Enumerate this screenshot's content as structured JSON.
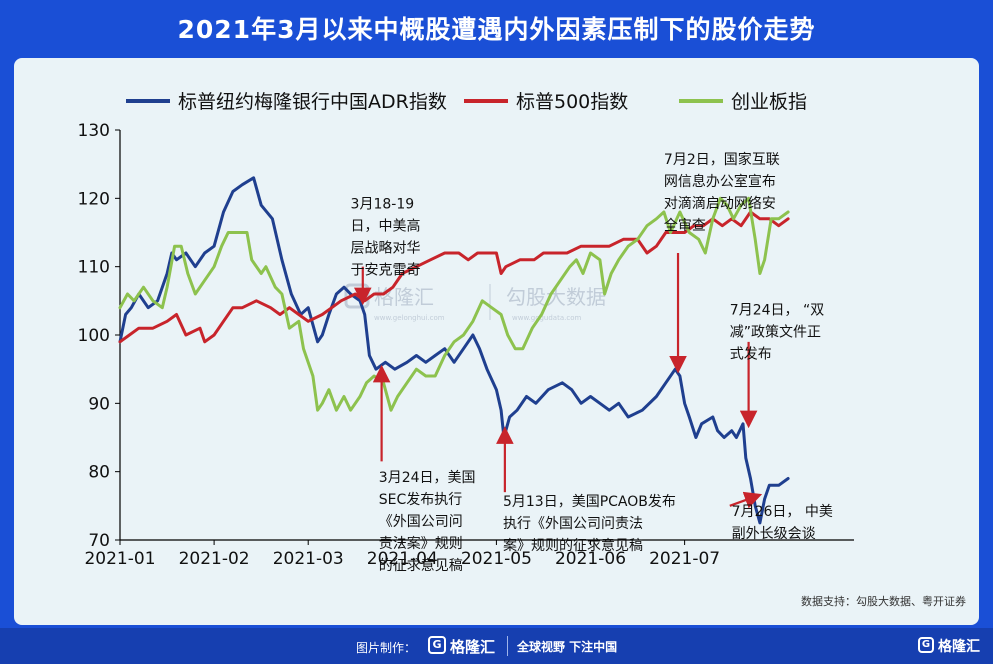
{
  "page_title": "2021年3月以来中概股遭遇内外因素压制下的股价走势",
  "source_note": "数据支持：勾股大数据、粤开证券",
  "watermarks": {
    "left": "格隆汇",
    "left_url": "www.gelonghui.com",
    "right": "勾股大数据",
    "right_url": "www.gogudata.com"
  },
  "footer": {
    "made_by": "图片制作：",
    "brand_icon": "G",
    "brand": "格隆汇",
    "slogan": "全球视野 下注中国",
    "corner_icon": "G",
    "corner_brand": "格隆汇"
  },
  "colors": {
    "adr": "#1f3f8f",
    "sp500": "#c8242b",
    "chinext": "#8dc24e",
    "arrow": "#c8242b",
    "header": "#1a4fd6"
  },
  "chart_data": {
    "type": "line",
    "title": "",
    "xlabel": "",
    "ylabel": "",
    "ylim": [
      70,
      130
    ],
    "yticks": [
      "70",
      "80",
      "90",
      "100",
      "110",
      "120",
      "130"
    ],
    "xlim": [
      0,
      7.8
    ],
    "xticks": [
      {
        "label": "2021-01",
        "x": 0
      },
      {
        "label": "2021-02",
        "x": 1
      },
      {
        "label": "2021-03",
        "x": 2
      },
      {
        "label": "2021-04",
        "x": 3
      },
      {
        "label": "2021-05",
        "x": 4
      },
      {
        "label": "2021-06",
        "x": 5
      },
      {
        "label": "2021-07",
        "x": 6
      }
    ],
    "grid": false,
    "legend_position": "top",
    "series": [
      {
        "name": "标普纽约梅隆银行中国ADR指数",
        "color": "#1f3f8f",
        "points": [
          [
            0,
            99
          ],
          [
            0.06,
            103
          ],
          [
            0.12,
            104
          ],
          [
            0.2,
            106
          ],
          [
            0.3,
            104
          ],
          [
            0.4,
            105
          ],
          [
            0.5,
            109
          ],
          [
            0.55,
            112
          ],
          [
            0.6,
            111
          ],
          [
            0.7,
            112
          ],
          [
            0.8,
            110
          ],
          [
            0.9,
            112
          ],
          [
            1.0,
            113
          ],
          [
            1.1,
            118
          ],
          [
            1.2,
            121
          ],
          [
            1.3,
            122
          ],
          [
            1.42,
            123
          ],
          [
            1.5,
            119
          ],
          [
            1.62,
            117
          ],
          [
            1.72,
            111
          ],
          [
            1.82,
            106
          ],
          [
            1.92,
            103
          ],
          [
            2.0,
            104
          ],
          [
            2.1,
            99
          ],
          [
            2.15,
            100
          ],
          [
            2.22,
            103
          ],
          [
            2.3,
            106
          ],
          [
            2.38,
            107
          ],
          [
            2.45,
            106
          ],
          [
            2.55,
            105
          ],
          [
            2.6,
            103
          ],
          [
            2.65,
            97
          ],
          [
            2.72,
            95
          ],
          [
            2.82,
            96
          ],
          [
            2.92,
            95
          ],
          [
            3.05,
            96
          ],
          [
            3.15,
            97
          ],
          [
            3.25,
            96
          ],
          [
            3.35,
            97
          ],
          [
            3.45,
            98
          ],
          [
            3.55,
            96
          ],
          [
            3.65,
            98
          ],
          [
            3.75,
            100
          ],
          [
            3.82,
            98
          ],
          [
            3.9,
            95
          ],
          [
            4.0,
            92
          ],
          [
            4.05,
            89
          ],
          [
            4.08,
            85
          ],
          [
            4.14,
            88
          ],
          [
            4.22,
            89
          ],
          [
            4.32,
            91
          ],
          [
            4.42,
            90
          ],
          [
            4.55,
            92
          ],
          [
            4.7,
            93
          ],
          [
            4.8,
            92
          ],
          [
            4.9,
            90
          ],
          [
            5.0,
            91
          ],
          [
            5.1,
            90
          ],
          [
            5.2,
            89
          ],
          [
            5.3,
            90
          ],
          [
            5.4,
            88
          ],
          [
            5.55,
            89
          ],
          [
            5.7,
            91
          ],
          [
            5.8,
            93
          ],
          [
            5.9,
            95
          ],
          [
            5.95,
            94
          ],
          [
            6.0,
            90
          ],
          [
            6.05,
            88
          ],
          [
            6.12,
            85
          ],
          [
            6.18,
            87
          ],
          [
            6.3,
            88
          ],
          [
            6.35,
            86
          ],
          [
            6.42,
            85
          ],
          [
            6.5,
            86
          ],
          [
            6.55,
            85
          ],
          [
            6.62,
            87
          ],
          [
            6.65,
            82
          ],
          [
            6.7,
            79
          ],
          [
            6.75,
            75
          ],
          [
            6.8,
            72.5
          ],
          [
            6.85,
            76
          ],
          [
            6.9,
            78
          ],
          [
            7.0,
            78
          ],
          [
            7.1,
            79
          ]
        ]
      },
      {
        "name": "标普500指数",
        "color": "#c8242b",
        "points": [
          [
            0,
            99
          ],
          [
            0.1,
            100
          ],
          [
            0.2,
            101
          ],
          [
            0.35,
            101
          ],
          [
            0.5,
            102
          ],
          [
            0.6,
            103
          ],
          [
            0.7,
            100
          ],
          [
            0.85,
            101
          ],
          [
            0.9,
            99
          ],
          [
            1.0,
            100
          ],
          [
            1.1,
            102
          ],
          [
            1.2,
            104
          ],
          [
            1.3,
            104
          ],
          [
            1.45,
            105
          ],
          [
            1.6,
            104
          ],
          [
            1.7,
            103
          ],
          [
            1.8,
            104
          ],
          [
            1.9,
            103
          ],
          [
            2.0,
            102
          ],
          [
            2.15,
            103
          ],
          [
            2.25,
            104
          ],
          [
            2.35,
            105
          ],
          [
            2.5,
            106
          ],
          [
            2.6,
            105
          ],
          [
            2.7,
            106
          ],
          [
            2.8,
            106
          ],
          [
            2.9,
            107
          ],
          [
            3.0,
            109
          ],
          [
            3.15,
            110
          ],
          [
            3.3,
            111
          ],
          [
            3.45,
            112
          ],
          [
            3.6,
            112
          ],
          [
            3.7,
            111
          ],
          [
            3.8,
            112
          ],
          [
            3.9,
            112
          ],
          [
            4.0,
            112
          ],
          [
            4.05,
            109
          ],
          [
            4.1,
            110
          ],
          [
            4.25,
            111
          ],
          [
            4.4,
            111
          ],
          [
            4.5,
            112
          ],
          [
            4.6,
            112
          ],
          [
            4.75,
            112
          ],
          [
            4.9,
            113
          ],
          [
            5.05,
            113
          ],
          [
            5.2,
            113
          ],
          [
            5.35,
            114
          ],
          [
            5.5,
            114
          ],
          [
            5.6,
            112
          ],
          [
            5.7,
            113
          ],
          [
            5.8,
            115
          ],
          [
            6.0,
            115
          ],
          [
            6.1,
            116
          ],
          [
            6.2,
            116
          ],
          [
            6.3,
            117
          ],
          [
            6.4,
            116
          ],
          [
            6.5,
            117
          ],
          [
            6.6,
            116
          ],
          [
            6.7,
            118
          ],
          [
            6.8,
            117
          ],
          [
            6.9,
            117
          ],
          [
            7.0,
            116
          ],
          [
            7.1,
            117
          ]
        ]
      },
      {
        "name": "创业板指",
        "color": "#8dc24e",
        "points": [
          [
            0,
            104
          ],
          [
            0.08,
            106
          ],
          [
            0.15,
            105
          ],
          [
            0.25,
            107
          ],
          [
            0.35,
            105
          ],
          [
            0.45,
            104
          ],
          [
            0.5,
            107
          ],
          [
            0.58,
            113
          ],
          [
            0.65,
            113
          ],
          [
            0.72,
            109
          ],
          [
            0.8,
            106
          ],
          [
            0.9,
            108
          ],
          [
            1.0,
            110
          ],
          [
            1.08,
            113
          ],
          [
            1.15,
            115
          ],
          [
            1.25,
            115
          ],
          [
            1.35,
            115
          ],
          [
            1.4,
            111
          ],
          [
            1.5,
            109
          ],
          [
            1.55,
            110
          ],
          [
            1.65,
            107
          ],
          [
            1.72,
            106
          ],
          [
            1.8,
            101
          ],
          [
            1.9,
            102
          ],
          [
            1.95,
            98
          ],
          [
            2.05,
            94
          ],
          [
            2.1,
            89
          ],
          [
            2.15,
            90
          ],
          [
            2.22,
            92
          ],
          [
            2.3,
            89
          ],
          [
            2.38,
            91
          ],
          [
            2.45,
            89
          ],
          [
            2.55,
            91
          ],
          [
            2.62,
            93
          ],
          [
            2.7,
            94
          ],
          [
            2.8,
            93
          ],
          [
            2.88,
            89
          ],
          [
            2.95,
            91
          ],
          [
            3.05,
            93
          ],
          [
            3.15,
            95
          ],
          [
            3.25,
            94
          ],
          [
            3.35,
            94
          ],
          [
            3.45,
            97
          ],
          [
            3.55,
            99
          ],
          [
            3.65,
            100
          ],
          [
            3.75,
            102
          ],
          [
            3.85,
            105
          ],
          [
            3.95,
            104
          ],
          [
            4.05,
            103
          ],
          [
            4.12,
            100
          ],
          [
            4.2,
            98
          ],
          [
            4.28,
            98
          ],
          [
            4.38,
            101
          ],
          [
            4.48,
            103
          ],
          [
            4.58,
            106
          ],
          [
            4.68,
            108
          ],
          [
            4.78,
            110
          ],
          [
            4.85,
            111
          ],
          [
            4.92,
            109
          ],
          [
            5.0,
            112
          ],
          [
            5.1,
            111
          ],
          [
            5.15,
            106
          ],
          [
            5.22,
            109
          ],
          [
            5.3,
            111
          ],
          [
            5.4,
            113
          ],
          [
            5.5,
            114
          ],
          [
            5.6,
            116
          ],
          [
            5.7,
            117
          ],
          [
            5.78,
            118
          ],
          [
            5.85,
            115
          ],
          [
            5.95,
            118
          ],
          [
            6.05,
            115
          ],
          [
            6.15,
            114
          ],
          [
            6.22,
            112
          ],
          [
            6.3,
            117
          ],
          [
            6.38,
            120
          ],
          [
            6.45,
            119
          ],
          [
            6.52,
            117
          ],
          [
            6.6,
            119
          ],
          [
            6.68,
            120
          ],
          [
            6.75,
            114
          ],
          [
            6.8,
            109
          ],
          [
            6.85,
            111
          ],
          [
            6.92,
            117
          ],
          [
            7.0,
            117
          ],
          [
            7.1,
            118
          ]
        ]
      }
    ],
    "annotations": [
      {
        "lines": [
          "3月18-19",
          "日，中美高",
          "层战略对华",
          "于安克雷奇"
        ],
        "arrow_from": [
          2.58,
          110
        ],
        "arrow_to": [
          2.58,
          105
        ],
        "anchor": "top",
        "text_at": [
          2.45,
          118.5
        ]
      },
      {
        "lines": [
          "3月24日，美国",
          "SEC发布执行",
          "《外国公司问",
          "责法案》规则",
          "的征求意见稿"
        ],
        "arrow_from": [
          2.78,
          81.5
        ],
        "arrow_to": [
          2.78,
          95
        ],
        "anchor": "top",
        "text_at": [
          2.75,
          78.5
        ]
      },
      {
        "lines": [
          "5月13日，美国PCAOB发布",
          "执行《外国公司问责法",
          "案》规则的征求意见稿"
        ],
        "arrow_from": [
          4.09,
          77
        ],
        "arrow_to": [
          4.09,
          86
        ],
        "anchor": "top",
        "text_at": [
          4.07,
          75
        ]
      },
      {
        "lines": [
          "7月2日，国家互联",
          "网信息办公室宣布",
          "对滴滴启动网络安",
          "全审查"
        ],
        "arrow_from": [
          5.93,
          112
        ],
        "arrow_to": [
          5.93,
          95
        ],
        "anchor": "top",
        "text_at": [
          5.78,
          125
        ]
      },
      {
        "lines": [
          "7月24日，  “双",
          "减”政策文件正",
          "式发布"
        ],
        "arrow_from": [
          6.68,
          99
        ],
        "arrow_to": [
          6.68,
          87
        ],
        "anchor": "top",
        "text_at": [
          6.48,
          103
        ]
      },
      {
        "lines": [
          "7月26日，  中美",
          "副外长级会谈"
        ],
        "arrow_from": [
          6.48,
          75
        ],
        "arrow_to": [
          6.78,
          76.5
        ],
        "anchor": "top",
        "text_at": [
          6.5,
          73.5
        ]
      }
    ]
  }
}
